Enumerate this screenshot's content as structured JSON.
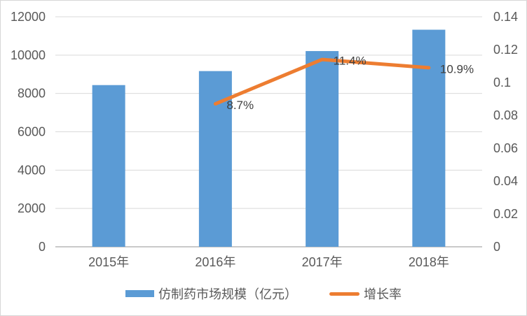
{
  "chart_data": {
    "type": "combo",
    "categories": [
      "2015年",
      "2016年",
      "2017年",
      "2018年"
    ],
    "series": [
      {
        "name": "仿制药市场规模（亿元）",
        "type": "bar",
        "axis": "left",
        "color": "#5B9BD5",
        "values": [
          8436,
          9167,
          10211,
          11325
        ]
      },
      {
        "name": "增长率",
        "type": "line",
        "axis": "right",
        "color": "#ED7D31",
        "values": [
          null,
          0.087,
          0.114,
          0.109
        ],
        "data_labels": [
          null,
          "8.7%",
          "11.4%",
          "10.9%"
        ]
      }
    ],
    "left_axis": {
      "min": 0,
      "max": 12000,
      "step": 2000,
      "tick_labels": [
        "0",
        "2000",
        "4000",
        "6000",
        "8000",
        "10000",
        "12000"
      ]
    },
    "right_axis": {
      "min": 0,
      "max": 0.14,
      "step": 0.02,
      "tick_labels": [
        "0",
        "0.02",
        "0.04",
        "0.06",
        "0.08",
        "0.1",
        "0.12",
        "0.14"
      ]
    },
    "grid": true,
    "legend_position": "bottom"
  },
  "colors": {
    "bar": "#5B9BD5",
    "line": "#ED7D31",
    "axis_text": "#595959",
    "data_label_text": "#404040",
    "gridline": "#D9D9D9",
    "axis_line": "#C9C9C9"
  }
}
